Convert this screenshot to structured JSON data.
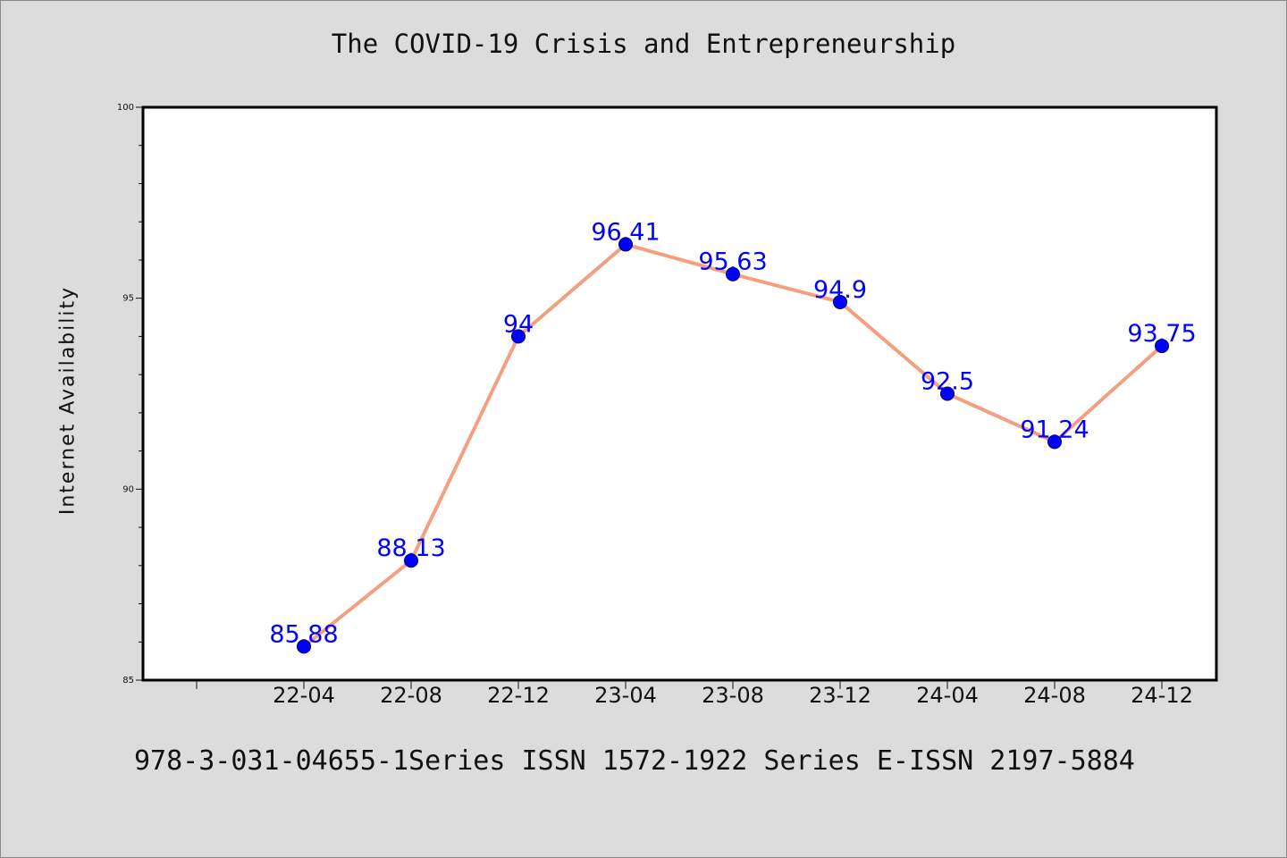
{
  "chart_data": {
    "type": "line",
    "title": "The COVID-19 Crisis and Entrepreneurship",
    "xlabel": "",
    "ylabel": "Internet Availability",
    "categories": [
      "22-04",
      "22-08",
      "22-12",
      "23-04",
      "23-08",
      "23-12",
      "24-04",
      "24-08",
      "24-12"
    ],
    "series": [
      {
        "values": [
          85.88,
          88.13,
          94,
          96.41,
          95.63,
          94.9,
          92.5,
          91.24,
          93.75
        ],
        "labels": [
          "85.88",
          "88.13",
          "94",
          "96.41",
          "95.63",
          "94.9",
          "92.5",
          "91.24",
          "93.75"
        ],
        "line_color": "#f4a080",
        "marker_color": "#0000ff"
      }
    ],
    "ylim": [
      85,
      100
    ],
    "yticks": [
      85,
      90,
      95,
      100
    ],
    "grid": false,
    "legend": "none"
  },
  "footer": "978-3-031-04655-1Series ISSN 1572-1922 Series E-ISSN 2197-5884"
}
